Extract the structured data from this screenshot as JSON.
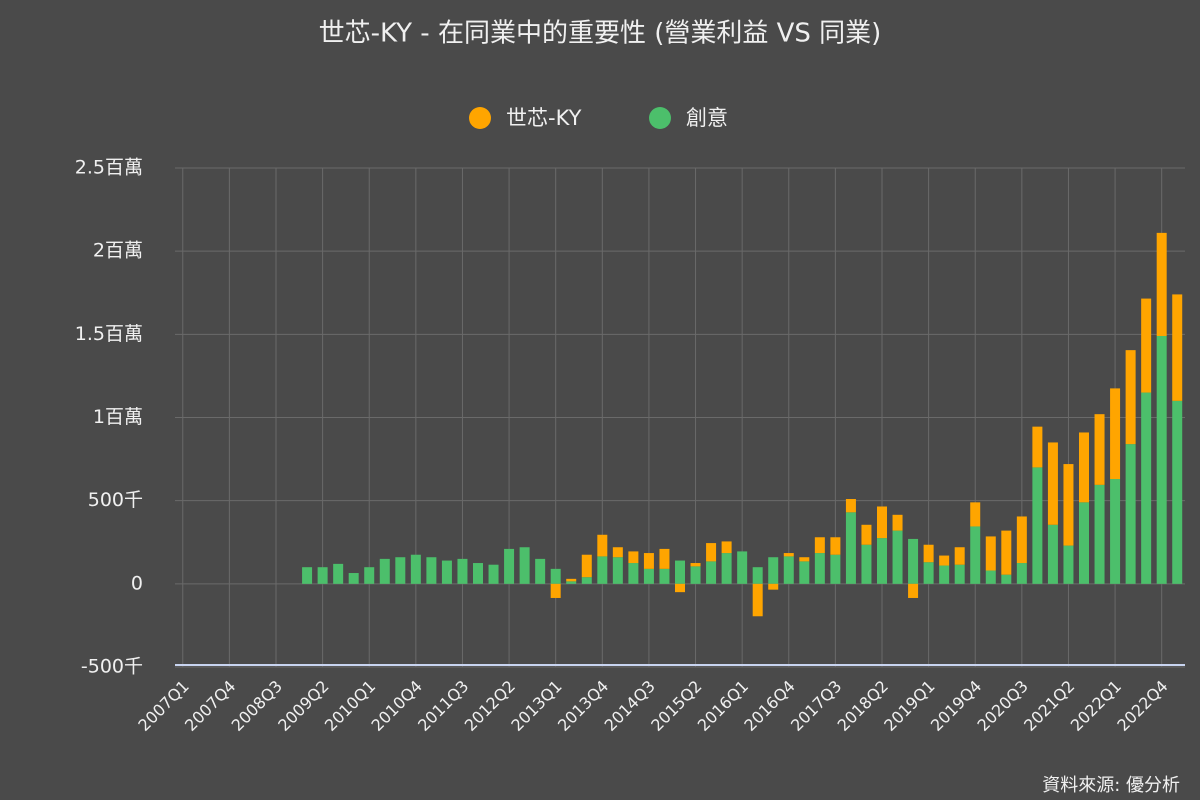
{
  "chart_data": {
    "type": "bar",
    "stacked": true,
    "title": "世芯-KY - 在同業中的重要性 (營業利益 VS 同業)",
    "source": "資料來源: 優分析",
    "categories": [
      "2007Q1",
      null,
      null,
      "2007Q4",
      null,
      null,
      "2008Q3",
      null,
      null,
      "2009Q2",
      null,
      null,
      "2010Q1",
      null,
      null,
      "2010Q4",
      null,
      null,
      "2011Q3",
      null,
      null,
      "2012Q2",
      null,
      null,
      "2013Q1",
      null,
      null,
      "2013Q4",
      null,
      null,
      "2014Q3",
      null,
      null,
      "2015Q2",
      null,
      null,
      "2016Q1",
      null,
      null,
      "2016Q4",
      null,
      null,
      "2017Q3",
      null,
      null,
      "2018Q2",
      null,
      null,
      "2019Q1",
      null,
      null,
      "2019Q4",
      null,
      null,
      "2020Q3",
      null,
      null,
      "2021Q2",
      null,
      null,
      "2022Q1",
      null,
      null,
      "2022Q4",
      null
    ],
    "series": [
      {
        "name": "世芯-KY",
        "color": "#ffa500",
        "values": [
          null,
          null,
          null,
          null,
          null,
          null,
          null,
          null,
          null,
          null,
          null,
          null,
          null,
          null,
          null,
          null,
          null,
          null,
          null,
          null,
          null,
          null,
          null,
          null,
          -85000,
          15000,
          135000,
          130000,
          60000,
          70000,
          95000,
          120000,
          -50000,
          20000,
          110000,
          70000,
          0,
          -195000,
          -35000,
          20000,
          25000,
          95000,
          105000,
          80000,
          120000,
          190000,
          95000,
          -85000,
          105000,
          60000,
          105000,
          145000,
          205000,
          265000,
          280000,
          245000,
          495000,
          490000,
          420000,
          425000,
          545000,
          565000,
          565000,
          620000,
          640000
        ]
      },
      {
        "name": "創意",
        "color": "#4cbf6b",
        "values": [
          null,
          null,
          null,
          null,
          null,
          null,
          null,
          null,
          100000,
          100000,
          120000,
          65000,
          100000,
          150000,
          160000,
          175000,
          160000,
          140000,
          150000,
          125000,
          115000,
          210000,
          220000,
          150000,
          90000,
          15000,
          40000,
          165000,
          160000,
          125000,
          90000,
          90000,
          140000,
          105000,
          135000,
          185000,
          195000,
          100000,
          160000,
          165000,
          135000,
          185000,
          175000,
          430000,
          235000,
          275000,
          320000,
          270000,
          130000,
          110000,
          115000,
          345000,
          80000,
          55000,
          125000,
          700000,
          355000,
          230000,
          490000,
          595000,
          630000,
          840000,
          1150000,
          1490000,
          1100000
        ]
      }
    ],
    "ylim": [
      -500000,
      2500000
    ],
    "yticks": [
      {
        "value": -500000,
        "label": "-500千"
      },
      0,
      {
        "value": 500000,
        "label": "500千"
      },
      {
        "value": 1000000,
        "label": "1百萬"
      },
      {
        "value": 1500000,
        "label": "1.5百萬"
      },
      {
        "value": 2000000,
        "label": "2百萬"
      },
      {
        "value": 2500000,
        "label": "2.5百萬"
      }
    ],
    "grid": true,
    "legend": "top"
  }
}
